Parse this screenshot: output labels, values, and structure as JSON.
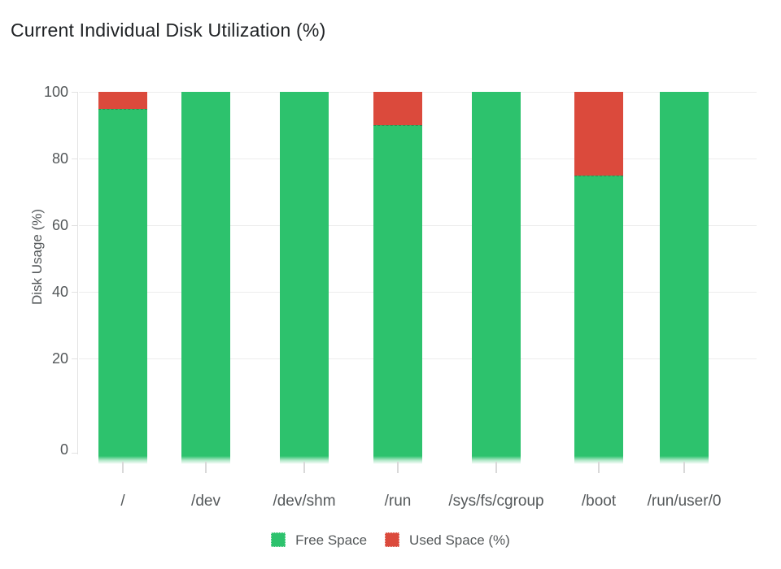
{
  "chart_data": {
    "type": "bar",
    "stacked": true,
    "title": "Current Individual Disk Utilization (%)",
    "ylabel": "Disk Usage (%)",
    "xlabel": "",
    "categories": [
      "/",
      "/dev",
      "/dev/shm",
      "/run",
      "/sys/fs/cgroup",
      "/boot",
      "/run/user/0"
    ],
    "series": [
      {
        "name": "Free Space",
        "color": "#2dc26d",
        "values": [
          95,
          100,
          100,
          90,
          100,
          75,
          100
        ]
      },
      {
        "name": "Used Space (%)",
        "color": "#db4a3c",
        "values": [
          5,
          0,
          0,
          10,
          0,
          25,
          0
        ]
      }
    ],
    "yticks": [
      100,
      80,
      60,
      40,
      20,
      0
    ],
    "ylim": [
      0,
      100
    ],
    "grid": true,
    "legend_position": "bottom"
  }
}
